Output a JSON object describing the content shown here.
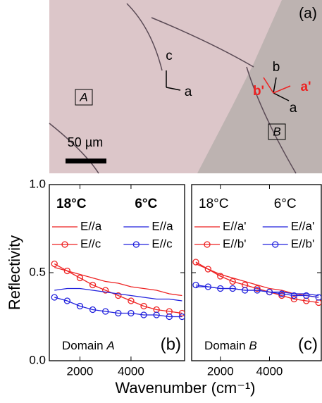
{
  "image": {
    "panel_label": "(a)",
    "domain_a": "A",
    "domain_b": "B",
    "scale_bar": "50 µm",
    "axes_a": [
      "c",
      "a"
    ],
    "axes_b": [
      "b",
      "a"
    ],
    "axes_b_prime": [
      "b'",
      "a'"
    ]
  },
  "chart_data": [
    {
      "type": "line",
      "ylabel": "Reflectivity",
      "xlabel": "Wavenumber (cm⁻¹)",
      "panel_label": "(b)",
      "domain_label": "Domain",
      "domain": "A",
      "legend_titles": [
        "18°C",
        "6°C"
      ],
      "legend_bold": true,
      "xlim": [
        800,
        6100
      ],
      "ylim": [
        0,
        1
      ],
      "xticks": [
        2000,
        4000
      ],
      "yticks": [
        {
          "value": 0,
          "label": "0.0"
        },
        0.5,
        {
          "value": 1,
          "label": "1.0"
        }
      ],
      "x": [
        1000,
        1500,
        2000,
        2500,
        3000,
        3500,
        4000,
        4500,
        5000,
        5500,
        6000
      ],
      "series": [
        {
          "name": "E//a",
          "color": "#ee2222",
          "style": "line",
          "values": [
            0.53,
            0.51,
            0.49,
            0.47,
            0.45,
            0.44,
            0.42,
            0.41,
            0.4,
            0.38,
            0.37
          ]
        },
        {
          "name": "E//c",
          "color": "#ee2222",
          "style": "circles",
          "values": [
            0.55,
            0.51,
            0.47,
            0.43,
            0.4,
            0.37,
            0.34,
            0.31,
            0.29,
            0.28,
            0.27
          ]
        },
        {
          "name": "E//a",
          "color": "#2222dd",
          "style": "line",
          "values": [
            0.4,
            0.41,
            0.41,
            0.4,
            0.39,
            0.38,
            0.37,
            0.36,
            0.35,
            0.35,
            0.34
          ]
        },
        {
          "name": "E//c",
          "color": "#2222dd",
          "style": "circles",
          "values": [
            0.36,
            0.34,
            0.31,
            0.29,
            0.28,
            0.27,
            0.27,
            0.26,
            0.26,
            0.25,
            0.25
          ]
        }
      ]
    },
    {
      "type": "line",
      "panel_label": "(c)",
      "domain_label": "Domain",
      "domain": "B",
      "legend_titles": [
        "18°C",
        "6°C"
      ],
      "legend_bold": false,
      "xlim": [
        830,
        6110
      ],
      "ylim": [
        0,
        1
      ],
      "xticks": [
        2000,
        4000
      ],
      "x": [
        1000,
        1500,
        2000,
        2500,
        3000,
        3500,
        4000,
        4500,
        5000,
        5500,
        6000
      ],
      "series": [
        {
          "name": "E//a'",
          "color": "#ee2222",
          "style": "line",
          "values": [
            0.55,
            0.52,
            0.49,
            0.47,
            0.45,
            0.43,
            0.41,
            0.4,
            0.38,
            0.37,
            0.36
          ]
        },
        {
          "name": "E//b'",
          "color": "#ee2222",
          "style": "circles",
          "values": [
            0.56,
            0.52,
            0.48,
            0.45,
            0.43,
            0.41,
            0.39,
            0.37,
            0.35,
            0.34,
            0.33
          ]
        },
        {
          "name": "E//a'",
          "color": "#2222dd",
          "style": "line",
          "values": [
            0.42,
            0.42,
            0.41,
            0.41,
            0.4,
            0.4,
            0.39,
            0.39,
            0.38,
            0.38,
            0.37
          ]
        },
        {
          "name": "E//b'",
          "color": "#2222dd",
          "style": "circles",
          "values": [
            0.43,
            0.42,
            0.41,
            0.41,
            0.4,
            0.4,
            0.39,
            0.38,
            0.37,
            0.37,
            0.36
          ]
        }
      ]
    }
  ]
}
